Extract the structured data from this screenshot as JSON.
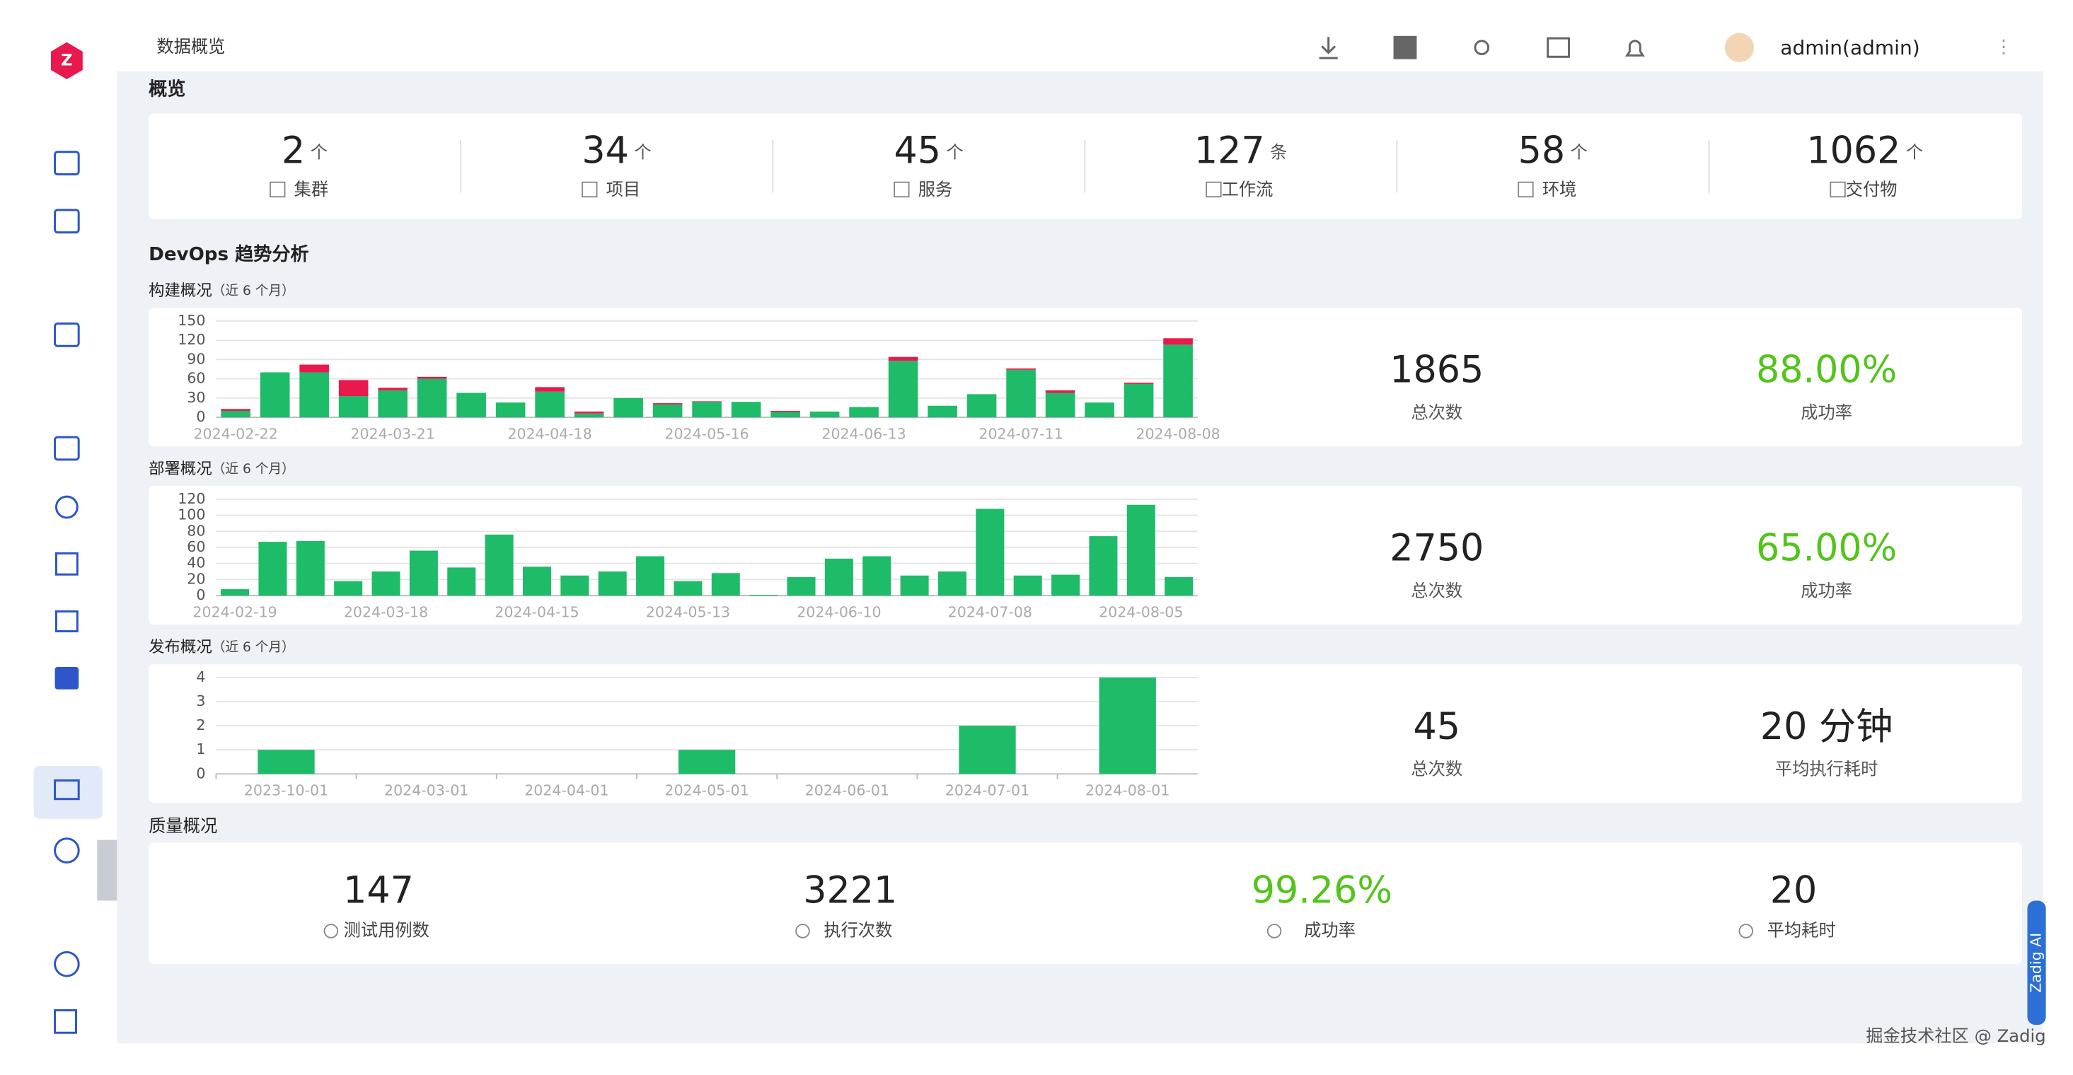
{
  "header": {
    "breadcrumb": "数据概览",
    "user": "admin(admin)"
  },
  "overview": {
    "title": "概览",
    "items": [
      {
        "value": "2",
        "unit": "个",
        "label": "集群"
      },
      {
        "value": "34",
        "unit": "个",
        "label": "项目"
      },
      {
        "value": "45",
        "unit": "个",
        "label": "服务"
      },
      {
        "value": "127",
        "unit": "条",
        "label": "工作流"
      },
      {
        "value": "58",
        "unit": "个",
        "label": "环境"
      },
      {
        "value": "1062",
        "unit": "个",
        "label": "交付物"
      }
    ]
  },
  "devops": {
    "title": "DevOps 趋势分析",
    "panels": [
      {
        "title": "构建概况",
        "range": "（近 6 个月）",
        "chart": {
          "type": "bar",
          "stacked": true,
          "categories": [
            "2024-02-22",
            null,
            null,
            null,
            "2024-03-21",
            null,
            null,
            null,
            "2024-04-18",
            null,
            null,
            null,
            "2024-05-16",
            null,
            null,
            null,
            "2024-06-13",
            null,
            null,
            null,
            "2024-07-11",
            null,
            null,
            null,
            "2024-08-08"
          ],
          "series": [
            {
              "color": "#1ebb69",
              "values": [
                10,
                70,
                70,
                33,
                42,
                60,
                38,
                23,
                40,
                6,
                30,
                20,
                24,
                24,
                8,
                9,
                16,
                88,
                18,
                36,
                74,
                38,
                23,
                52,
                113
              ]
            },
            {
              "color": "#e8194c",
              "values": [
                3,
                0,
                12,
                25,
                4,
                3,
                0,
                0,
                7,
                3,
                0,
                2,
                1,
                0,
                2,
                0,
                0,
                6,
                0,
                0,
                2,
                4,
                0,
                2,
                10
              ]
            }
          ],
          "ylim": [
            0,
            150
          ],
          "yticks": [
            0,
            30,
            60,
            90,
            120,
            150
          ],
          "grid": true
        },
        "stats": [
          {
            "value": "1865",
            "label": "总次数"
          },
          {
            "value": "88.00%",
            "label": "成功率",
            "color": "#52c41a"
          }
        ]
      },
      {
        "title": "部署概况",
        "range": "（近 6 个月）",
        "chart": {
          "type": "bar",
          "stacked": true,
          "categories": [
            "2024-02-19",
            null,
            null,
            null,
            "2024-03-18",
            null,
            null,
            null,
            "2024-04-15",
            null,
            null,
            null,
            "2024-05-13",
            null,
            null,
            null,
            "2024-06-10",
            null,
            null,
            null,
            "2024-07-08",
            null,
            null,
            null,
            "2024-08-05",
            null
          ],
          "series": [
            {
              "color": "#1ebb69",
              "values": [
                8,
                67,
                68,
                18,
                30,
                56,
                35,
                76,
                36,
                25,
                30,
                49,
                18,
                28,
                1,
                23,
                46,
                49,
                25,
                30,
                108,
                25,
                26,
                74,
                113,
                23
              ]
            }
          ],
          "ylim": [
            0,
            120
          ],
          "yticks": [
            0,
            20,
            40,
            60,
            80,
            100,
            120
          ],
          "grid": true
        },
        "stats": [
          {
            "value": "2750",
            "label": "总次数"
          },
          {
            "value": "65.00%",
            "label": "成功率",
            "color": "#52c41a"
          }
        ]
      },
      {
        "title": "发布概况",
        "range": "（近 6 个月）",
        "chart": {
          "type": "bar",
          "stacked": true,
          "categories": [
            "2023-10-01",
            "2024-03-01",
            "2024-04-01",
            "2024-05-01",
            "2024-06-01",
            "2024-07-01",
            "2024-08-01"
          ],
          "series": [
            {
              "color": "#1ebb69",
              "values": [
                1,
                0,
                0,
                1,
                0,
                2,
                4
              ]
            }
          ],
          "ylim": [
            0,
            4
          ],
          "yticks": [
            0,
            1,
            2,
            3,
            4
          ],
          "grid": true
        },
        "stats": [
          {
            "value": "45",
            "label": "总次数"
          },
          {
            "value": "20 分钟",
            "label": "平均执行耗时"
          }
        ]
      }
    ]
  },
  "quality": {
    "title": "质量概况",
    "items": [
      {
        "value": "147",
        "label": "测试用例数"
      },
      {
        "value": "3221",
        "label": "执行次数"
      },
      {
        "value": "99.26%",
        "label": "成功率",
        "color": "#52c41a"
      },
      {
        "value": "20",
        "label": "平均耗时"
      }
    ]
  },
  "ai_tab": "Zadig AI",
  "watermark": "掘金技术社区 @ Zadig"
}
